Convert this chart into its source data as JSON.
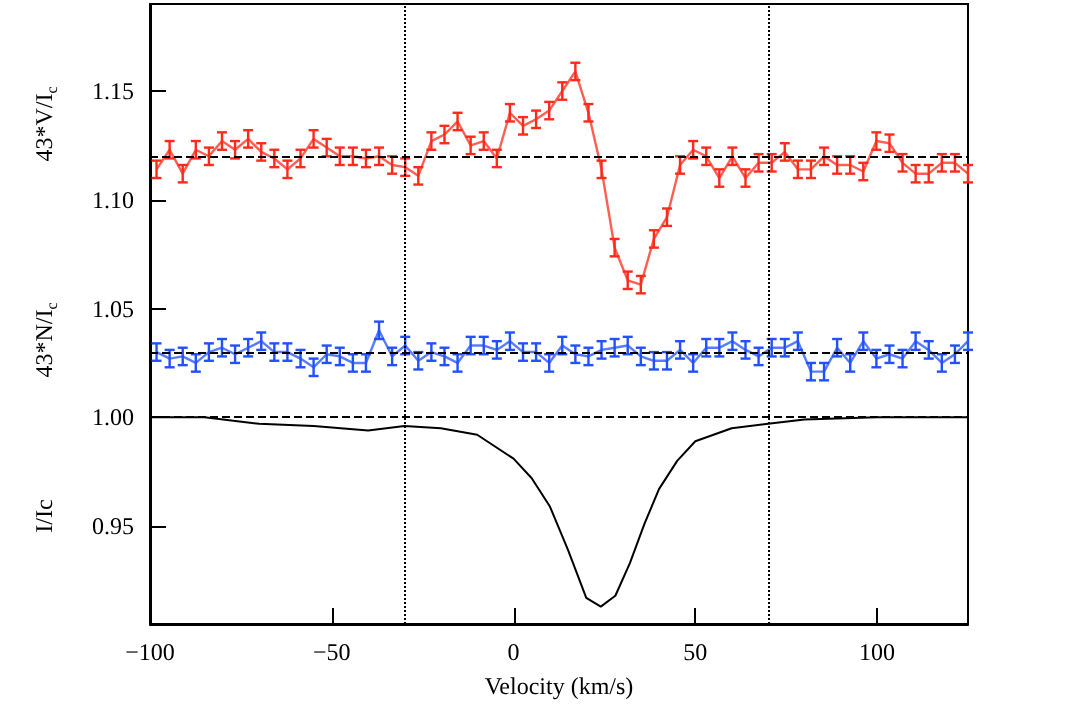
{
  "chart_data": {
    "type": "line",
    "xlabel": "Velocity (km/s)",
    "ylabel": "I/Ic",
    "annotations": [
      "43*V/I$_{c}$",
      "43*N/I$_{c}$"
    ],
    "xlim": [
      -100,
      125
    ],
    "xticks": [
      -100,
      -50,
      0,
      50,
      100
    ],
    "ylim": [
      0.905,
      1.19
    ],
    "yticks": [
      {
        "value": 0.95,
        "label": "0.95"
      },
      {
        "value": 1.0,
        "label": "1.00"
      },
      {
        "value": 1.05,
        "label": "1.05"
      },
      {
        "value": 1.1,
        "label": "1.10"
      },
      {
        "value": 1.15,
        "label": "1.15"
      }
    ],
    "marker": "none",
    "line_style": "solid",
    "ref_lines": [
      {
        "axis": "y",
        "value": 1.119,
        "line_style": "dashed",
        "color": "#000000"
      },
      {
        "axis": "y",
        "value": 1.029,
        "line_style": "dashed",
        "color": "#000000"
      },
      {
        "axis": "y",
        "value": 1.0,
        "line_style": "dashed",
        "color": "#000000"
      },
      {
        "axis": "x",
        "value": -30,
        "line_style": "dotted",
        "color": "#000000"
      },
      {
        "axis": "x",
        "value": 70,
        "line_style": "dotted",
        "color": "#000000"
      }
    ],
    "series": [
      {
        "color": "#ff2a1a",
        "x": [
          -98.2,
          -94.6,
          -91.0,
          -87.4,
          -83.8,
          -80.2,
          -76.6,
          -73.0,
          -69.4,
          -65.8,
          -62.2,
          -58.6,
          -55.0,
          -51.4,
          -47.8,
          -44.2,
          -40.6,
          -37.0,
          -33.4,
          -29.8,
          -26.2,
          -22.6,
          -19.0,
          -15.4,
          -11.8,
          -8.2,
          -4.6,
          -1.0,
          2.6,
          6.2,
          9.8,
          13.4,
          17.0,
          20.6,
          24.2,
          27.8,
          31.4,
          35.0,
          38.6,
          42.2,
          45.8,
          49.4,
          53.0,
          56.6,
          60.2,
          63.8,
          67.4,
          71.0,
          74.6,
          78.2,
          81.8,
          85.4,
          89.0,
          92.6,
          96.2,
          99.8,
          103.4,
          107.0,
          110.6,
          114.2,
          117.8,
          121.4,
          125.0
        ],
        "values": [
          1.114,
          1.123,
          1.112,
          1.123,
          1.12,
          1.127,
          1.123,
          1.128,
          1.122,
          1.119,
          1.114,
          1.119,
          1.128,
          1.124,
          1.12,
          1.12,
          1.119,
          1.12,
          1.116,
          1.115,
          1.111,
          1.127,
          1.13,
          1.136,
          1.125,
          1.127,
          1.119,
          1.14,
          1.134,
          1.137,
          1.141,
          1.15,
          1.159,
          1.14,
          1.114,
          1.078,
          1.063,
          1.061,
          1.082,
          1.092,
          1.116,
          1.123,
          1.12,
          1.11,
          1.12,
          1.11,
          1.117,
          1.117,
          1.122,
          1.114,
          1.114,
          1.12,
          1.116,
          1.116,
          1.113,
          1.127,
          1.126,
          1.117,
          1.112,
          1.112,
          1.117,
          1.117,
          1.112
        ],
        "errors": [
          0.004,
          0.004,
          0.004,
          0.004,
          0.004,
          0.004,
          0.004,
          0.004,
          0.004,
          0.004,
          0.004,
          0.004,
          0.004,
          0.004,
          0.004,
          0.004,
          0.004,
          0.004,
          0.004,
          0.004,
          0.004,
          0.004,
          0.004,
          0.004,
          0.004,
          0.004,
          0.004,
          0.004,
          0.004,
          0.004,
          0.004,
          0.004,
          0.004,
          0.004,
          0.004,
          0.004,
          0.004,
          0.004,
          0.004,
          0.004,
          0.004,
          0.004,
          0.004,
          0.004,
          0.004,
          0.004,
          0.004,
          0.004,
          0.004,
          0.004,
          0.004,
          0.004,
          0.004,
          0.004,
          0.004,
          0.004,
          0.004,
          0.004,
          0.004,
          0.004,
          0.004,
          0.004,
          0.004
        ]
      },
      {
        "color": "#2050ff",
        "x": [
          -98.2,
          -94.6,
          -91.0,
          -87.4,
          -83.8,
          -80.2,
          -76.6,
          -73.0,
          -69.4,
          -65.8,
          -62.2,
          -58.6,
          -55.0,
          -51.4,
          -47.8,
          -44.2,
          -40.6,
          -37.0,
          -33.4,
          -29.8,
          -26.2,
          -22.6,
          -19.0,
          -15.4,
          -11.8,
          -8.2,
          -4.6,
          -1.0,
          2.6,
          6.2,
          9.8,
          13.4,
          17.0,
          20.6,
          24.2,
          27.8,
          31.4,
          35.0,
          38.6,
          42.2,
          45.8,
          49.4,
          53.0,
          56.6,
          60.2,
          63.8,
          67.4,
          71.0,
          74.6,
          78.2,
          81.8,
          85.4,
          89.0,
          92.6,
          96.2,
          99.8,
          103.4,
          107.0,
          110.6,
          114.2,
          117.8,
          121.4,
          125.0
        ],
        "values": [
          1.03,
          1.027,
          1.028,
          1.025,
          1.03,
          1.032,
          1.029,
          1.032,
          1.035,
          1.03,
          1.03,
          1.027,
          1.023,
          1.029,
          1.028,
          1.025,
          1.025,
          1.04,
          1.028,
          1.033,
          1.026,
          1.03,
          1.028,
          1.025,
          1.033,
          1.033,
          1.031,
          1.035,
          1.03,
          1.03,
          1.025,
          1.033,
          1.029,
          1.028,
          1.031,
          1.032,
          1.033,
          1.028,
          1.026,
          1.026,
          1.031,
          1.025,
          1.032,
          1.032,
          1.035,
          1.031,
          1.028,
          1.032,
          1.032,
          1.035,
          1.021,
          1.021,
          1.032,
          1.025,
          1.035,
          1.027,
          1.029,
          1.027,
          1.035,
          1.031,
          1.025,
          1.029,
          1.035
        ],
        "errors": [
          0.004,
          0.004,
          0.004,
          0.004,
          0.004,
          0.004,
          0.004,
          0.004,
          0.004,
          0.004,
          0.004,
          0.004,
          0.004,
          0.004,
          0.004,
          0.004,
          0.004,
          0.004,
          0.004,
          0.004,
          0.004,
          0.004,
          0.004,
          0.004,
          0.004,
          0.004,
          0.004,
          0.004,
          0.004,
          0.004,
          0.004,
          0.004,
          0.004,
          0.004,
          0.004,
          0.004,
          0.004,
          0.004,
          0.004,
          0.004,
          0.004,
          0.004,
          0.004,
          0.004,
          0.004,
          0.004,
          0.004,
          0.004,
          0.004,
          0.004,
          0.004,
          0.004,
          0.004,
          0.004,
          0.004,
          0.004,
          0.004,
          0.004,
          0.004,
          0.004,
          0.004,
          0.004,
          0.004
        ]
      },
      {
        "color": "#000000",
        "x": [
          -100,
          -85,
          -70,
          -55,
          -40,
          -30,
          -20,
          -10,
          0,
          5,
          10,
          15,
          20,
          24,
          28,
          32,
          36,
          40,
          45,
          50,
          60,
          70,
          80,
          100,
          125
        ],
        "values": [
          1.0,
          1.0,
          0.997,
          0.996,
          0.994,
          0.996,
          0.995,
          0.992,
          0.981,
          0.972,
          0.959,
          0.939,
          0.917,
          0.913,
          0.918,
          0.933,
          0.951,
          0.967,
          0.98,
          0.989,
          0.995,
          0.997,
          0.999,
          1.0,
          1.0
        ]
      }
    ]
  }
}
